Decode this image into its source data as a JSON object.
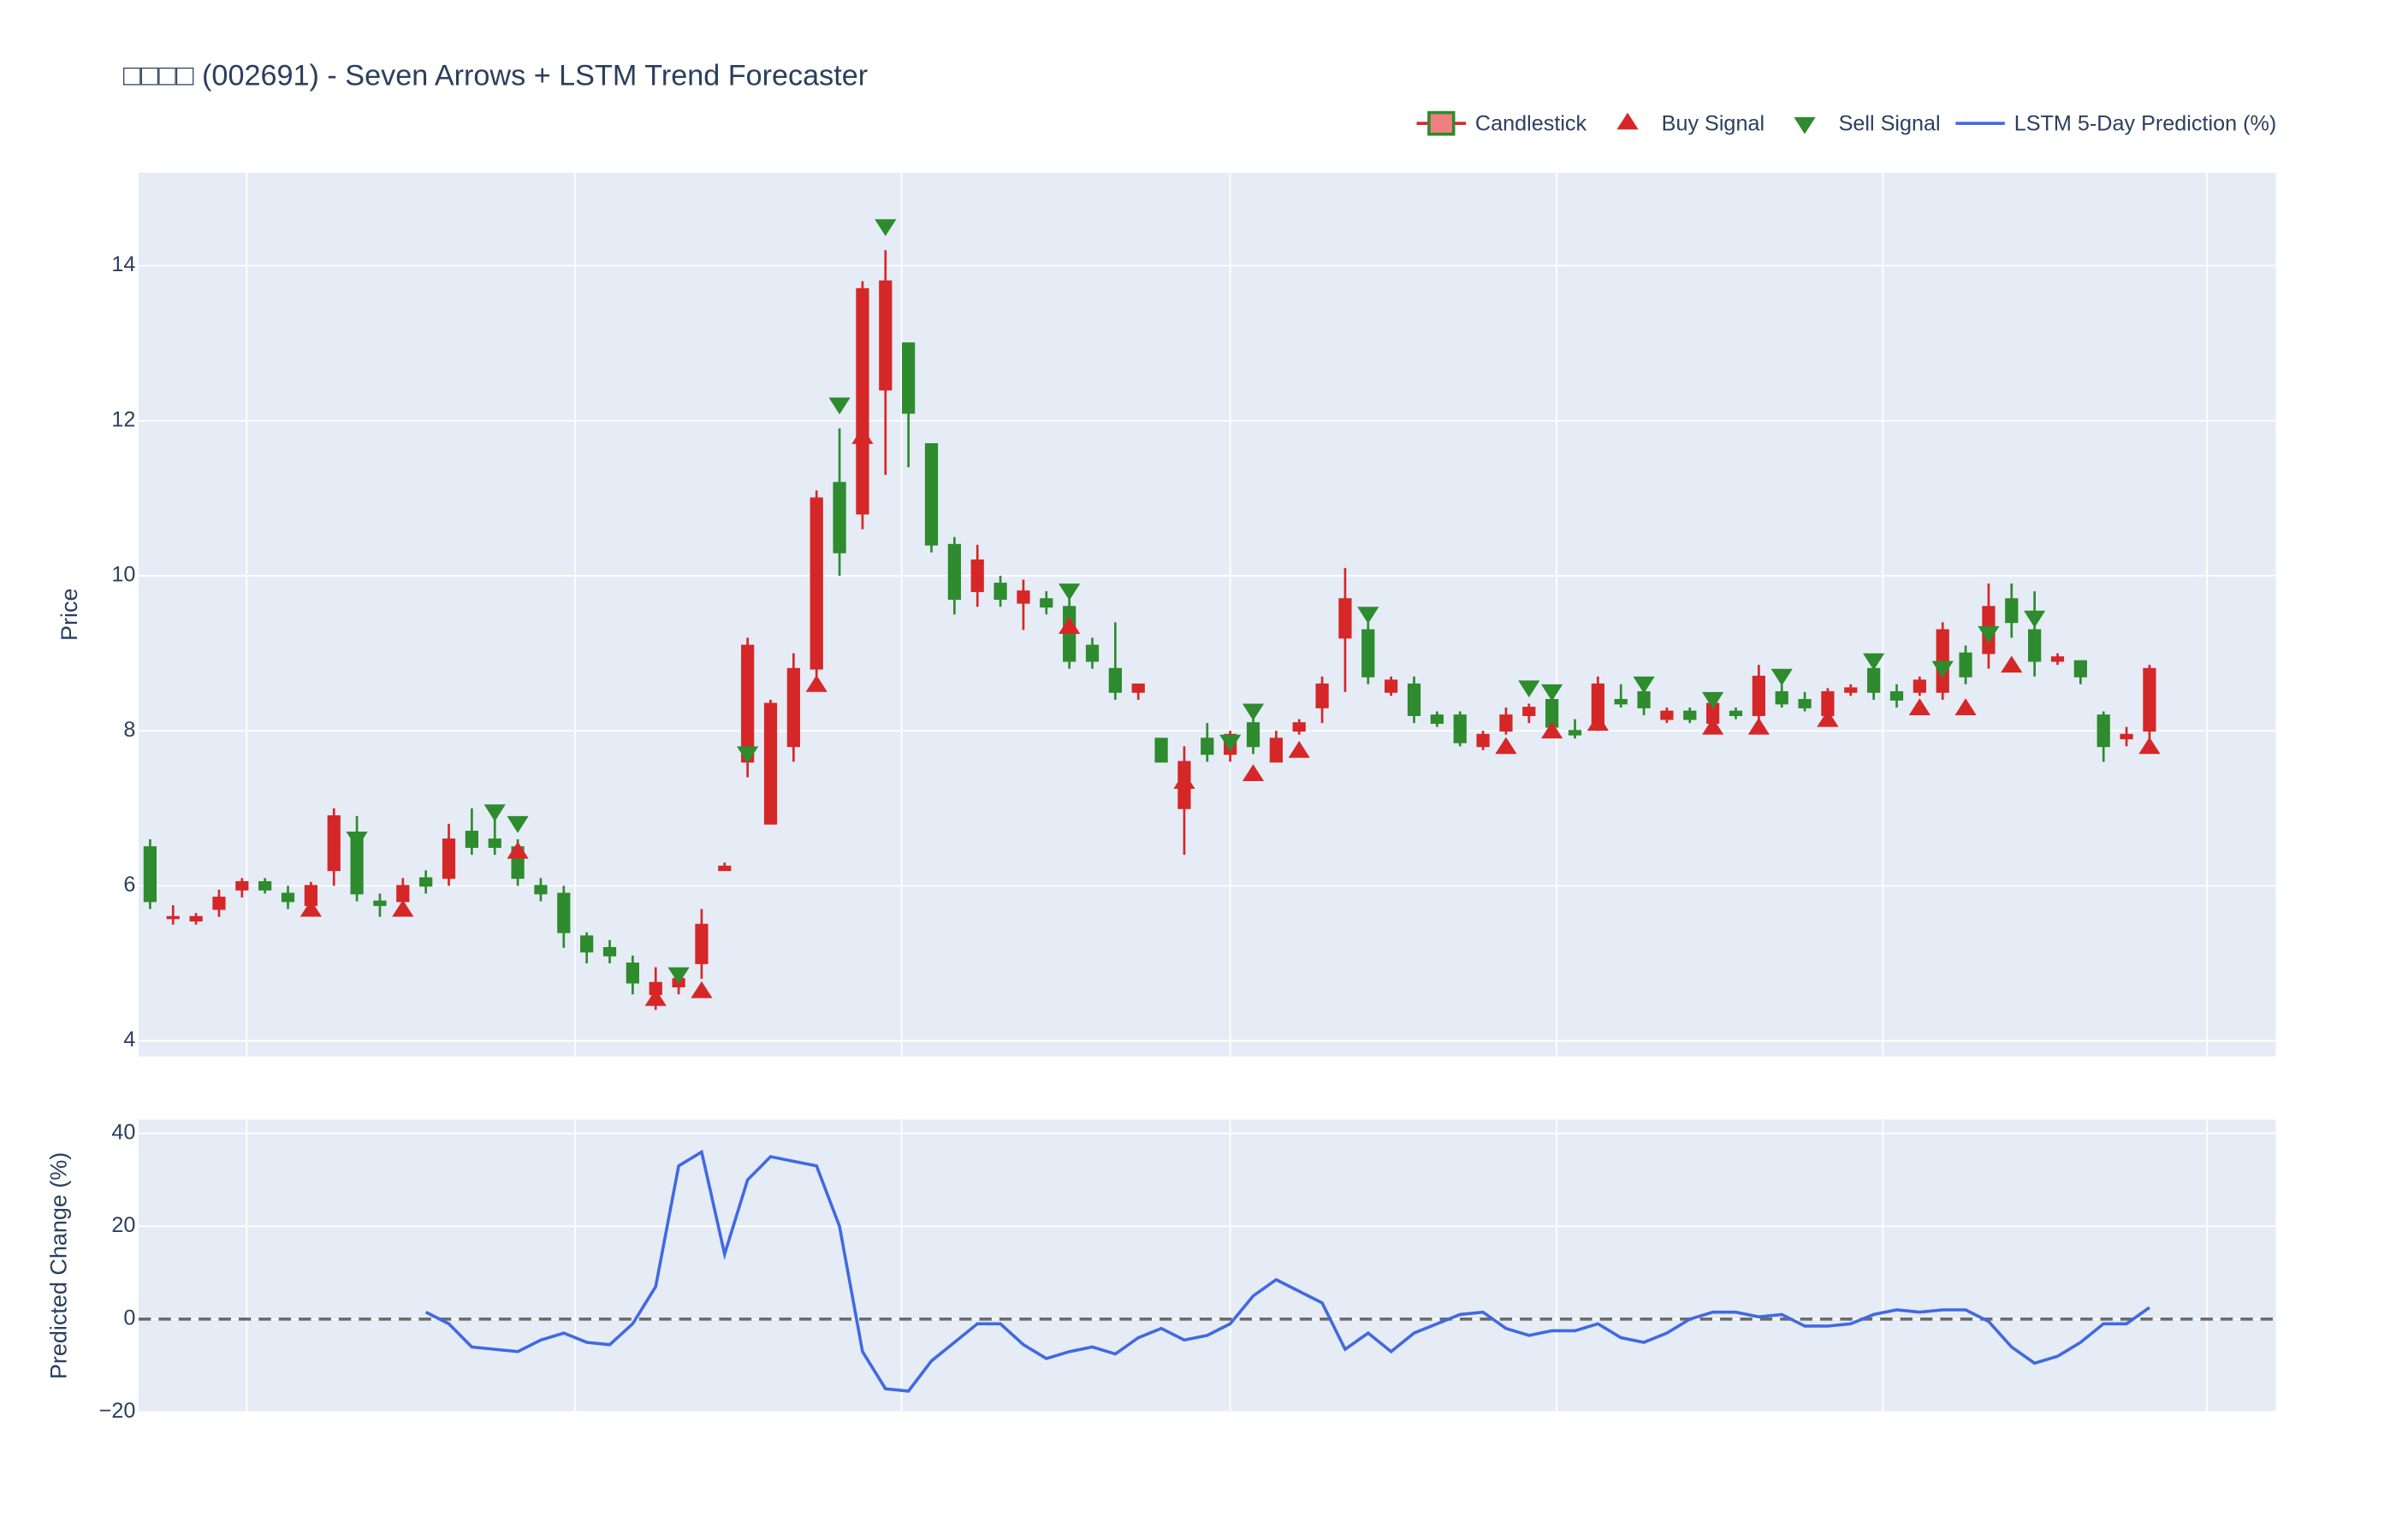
{
  "chart_data": [
    {
      "type": "candlestick",
      "title": "□□□□ (002691) - Seven Arrows + LSTM Trend Forecaster",
      "y_label": "Price",
      "name": "Candlestick",
      "increasing_color": "#d62728",
      "decreasing_color": "#2e8b2e",
      "legend": "top-right",
      "grid": true,
      "x": [
        0,
        1,
        2,
        3,
        4,
        5,
        6,
        7,
        8,
        9,
        10,
        11,
        12,
        13,
        14,
        15,
        16,
        17,
        18,
        19,
        20,
        21,
        22,
        23,
        24,
        25,
        26,
        27,
        28,
        29,
        30,
        31,
        32,
        33,
        34,
        35,
        36,
        37,
        38,
        39,
        40,
        41,
        42,
        43,
        44,
        45,
        46,
        47,
        48,
        49,
        50,
        51,
        52,
        53,
        54,
        55,
        56,
        57,
        58,
        59,
        60,
        61,
        62,
        63,
        64,
        65,
        66,
        67,
        68,
        69,
        70,
        71,
        72,
        73,
        74,
        75,
        76,
        77,
        78,
        79,
        80,
        81,
        82,
        83,
        84,
        85,
        86,
        87
      ],
      "open": [
        6.5,
        5.6,
        5.55,
        5.7,
        5.95,
        6.05,
        5.9,
        5.75,
        6.2,
        6.6,
        5.8,
        5.8,
        6.1,
        6.1,
        6.7,
        6.6,
        6.5,
        6.0,
        5.9,
        5.35,
        5.2,
        5.0,
        4.6,
        4.7,
        5.0,
        6.2,
        7.6,
        6.8,
        7.8,
        8.8,
        11.2,
        10.8,
        12.4,
        13.0,
        11.7,
        10.4,
        9.8,
        9.9,
        9.65,
        9.7,
        9.6,
        9.1,
        8.8,
        8.5,
        7.9,
        7.0,
        7.9,
        7.7,
        8.1,
        7.6,
        8.0,
        8.3,
        9.2,
        9.3,
        8.5,
        8.6,
        8.2,
        8.2,
        7.8,
        8.0,
        8.2,
        8.4,
        8.0,
        8.1,
        8.4,
        8.5,
        8.15,
        8.25,
        8.1,
        8.25,
        8.2,
        8.5,
        8.4,
        8.2,
        8.5,
        8.8,
        8.5,
        8.5,
        8.5,
        9.0,
        9.0,
        9.7,
        9.3,
        8.9,
        8.9,
        8.2,
        7.9,
        8.0
      ],
      "high": [
        6.6,
        5.75,
        5.65,
        5.95,
        6.1,
        6.1,
        6.0,
        6.05,
        7.0,
        6.9,
        5.9,
        6.1,
        6.2,
        6.8,
        7.0,
        6.9,
        6.6,
        6.1,
        6.0,
        5.4,
        5.3,
        5.1,
        4.95,
        4.9,
        5.7,
        6.3,
        9.2,
        8.4,
        9.0,
        11.1,
        11.9,
        13.8,
        14.2,
        13.0,
        11.7,
        10.5,
        10.4,
        10.0,
        9.95,
        9.8,
        9.7,
        9.2,
        9.4,
        8.6,
        7.9,
        7.8,
        8.1,
        8.0,
        8.2,
        8.0,
        8.15,
        8.7,
        10.1,
        9.4,
        8.7,
        8.7,
        8.25,
        8.25,
        8.0,
        8.3,
        8.35,
        8.5,
        8.15,
        8.7,
        8.6,
        8.6,
        8.3,
        8.3,
        8.4,
        8.3,
        8.85,
        8.6,
        8.5,
        8.55,
        8.6,
        8.9,
        8.6,
        8.7,
        9.4,
        9.1,
        9.9,
        9.9,
        9.8,
        9.0,
        8.9,
        8.25,
        8.05,
        8.85
      ],
      "low": [
        5.7,
        5.5,
        5.5,
        5.6,
        5.85,
        5.9,
        5.7,
        5.7,
        6.0,
        5.8,
        5.6,
        5.7,
        5.9,
        6.0,
        6.4,
        6.4,
        6.0,
        5.8,
        5.2,
        5.0,
        5.0,
        4.6,
        4.4,
        4.6,
        4.8,
        6.2,
        7.4,
        6.8,
        7.6,
        8.6,
        10.0,
        10.6,
        11.3,
        11.4,
        10.3,
        9.5,
        9.6,
        9.6,
        9.3,
        9.5,
        8.8,
        8.8,
        8.4,
        8.4,
        7.6,
        6.4,
        7.6,
        7.6,
        7.7,
        7.6,
        7.95,
        8.1,
        8.5,
        8.6,
        8.45,
        8.1,
        8.05,
        7.8,
        7.75,
        7.95,
        8.1,
        7.95,
        7.9,
        8.0,
        8.3,
        8.2,
        8.1,
        8.1,
        8.05,
        8.15,
        8.1,
        8.3,
        8.25,
        8.1,
        8.45,
        8.4,
        8.3,
        8.45,
        8.4,
        8.6,
        8.8,
        9.2,
        8.7,
        8.85,
        8.6,
        7.6,
        7.8,
        7.9
      ],
      "close": [
        5.8,
        5.6,
        5.6,
        5.85,
        6.05,
        5.95,
        5.8,
        6.0,
        6.9,
        5.9,
        5.75,
        6.0,
        6.0,
        6.6,
        6.5,
        6.5,
        6.1,
        5.9,
        5.4,
        5.15,
        5.1,
        4.75,
        4.75,
        4.8,
        5.5,
        6.25,
        9.1,
        8.35,
        8.8,
        11.0,
        10.3,
        13.7,
        13.8,
        12.1,
        10.4,
        9.7,
        10.2,
        9.7,
        9.8,
        9.6,
        8.9,
        8.9,
        8.5,
        8.6,
        7.6,
        7.6,
        7.7,
        7.95,
        7.8,
        7.9,
        8.1,
        8.6,
        9.7,
        8.7,
        8.65,
        8.2,
        8.1,
        7.85,
        7.95,
        8.2,
        8.3,
        8.05,
        7.95,
        8.6,
        8.35,
        8.3,
        8.25,
        8.15,
        8.35,
        8.2,
        8.7,
        8.35,
        8.3,
        8.5,
        8.55,
        8.5,
        8.4,
        8.65,
        9.3,
        8.7,
        9.6,
        9.4,
        8.9,
        8.95,
        8.7,
        7.8,
        7.95,
        8.8
      ],
      "xlim": [
        -0.5,
        92.5
      ],
      "x_grid": [
        4.2,
        18.5,
        32.7,
        47.0,
        61.2,
        75.4,
        89.5
      ],
      "ylim": [
        3.8,
        15.2
      ],
      "yticks": [
        4,
        6,
        8,
        10,
        12,
        14
      ],
      "signals": [
        {
          "name": "Buy Signal",
          "marker": "triangle-up",
          "color": "#d62728",
          "x": [
            7,
            11,
            16,
            22,
            24,
            29,
            31,
            40,
            45,
            48,
            50,
            59,
            61,
            63,
            68,
            70,
            73,
            77,
            79,
            81,
            87
          ],
          "values": [
            5.7,
            5.7,
            6.45,
            4.55,
            4.65,
            8.6,
            11.8,
            9.35,
            7.35,
            7.45,
            7.75,
            7.8,
            8.0,
            8.1,
            8.05,
            8.05,
            8.15,
            8.3,
            8.3,
            8.85,
            7.8
          ]
        },
        {
          "name": "Sell Signal",
          "marker": "triangle-down",
          "color": "#2e8b2e",
          "x": [
            9,
            15,
            16,
            23,
            26,
            30,
            32,
            40,
            47,
            48,
            53,
            60,
            61,
            65,
            68,
            71,
            75,
            78,
            80,
            82
          ],
          "values": [
            6.6,
            6.95,
            6.8,
            4.85,
            7.7,
            12.2,
            14.5,
            9.8,
            7.85,
            8.25,
            9.5,
            8.55,
            8.5,
            8.6,
            8.4,
            8.7,
            8.9,
            8.8,
            9.25,
            9.45
          ]
        }
      ]
    },
    {
      "type": "line",
      "y_label": "Predicted Change (%)",
      "grid": true,
      "x": [
        0,
        1,
        2,
        3,
        4,
        5,
        6,
        7,
        8,
        9,
        10,
        11,
        12,
        13,
        14,
        15,
        16,
        17,
        18,
        19,
        20,
        21,
        22,
        23,
        24,
        25,
        26,
        27,
        28,
        29,
        30,
        31,
        32,
        33,
        34,
        35,
        36,
        37,
        38,
        39,
        40,
        41,
        42,
        43,
        44,
        45,
        46,
        47,
        48,
        49,
        50,
        51,
        52,
        53,
        54,
        55,
        56,
        57,
        58,
        59,
        60,
        61,
        62,
        63,
        64,
        65,
        66,
        67,
        68,
        69,
        70,
        71,
        72,
        73,
        74,
        75,
        76,
        77,
        78,
        79,
        80,
        81,
        82,
        83,
        84,
        85,
        86,
        87
      ],
      "series": [
        {
          "name": "LSTM 5-Day Prediction (%)",
          "color": "#4169e1",
          "values": [
            null,
            null,
            null,
            null,
            null,
            null,
            null,
            null,
            null,
            null,
            null,
            null,
            1.5,
            -1,
            -6,
            -6.5,
            -7,
            -4.5,
            -3,
            -5,
            -5.5,
            -1,
            7,
            33,
            36,
            14,
            30,
            35,
            34,
            33,
            20,
            -7,
            -15,
            -15.5,
            -9,
            -5,
            -1,
            -1,
            -5.5,
            -8.5,
            -7,
            -6,
            -7.5,
            -4,
            -2,
            -4.5,
            -3.5,
            -1,
            5,
            8.5,
            6,
            3.5,
            -6.5,
            -3,
            -7,
            -3,
            -1,
            1,
            1.5,
            -2,
            -3.5,
            -2.5,
            -2.5,
            -1,
            -4,
            -5,
            -3,
            0,
            1.5,
            1.5,
            0.5,
            1,
            -1.5,
            -1.5,
            -1,
            1,
            2,
            1.5,
            2,
            2,
            -0.5,
            -6,
            -9.5,
            -8,
            -5,
            -1,
            -1,
            2.5
          ]
        }
      ],
      "hline": 0,
      "xlim": [
        -0.5,
        92.5
      ],
      "x_grid": [
        4.2,
        18.5,
        32.7,
        47.0,
        61.2,
        75.4,
        89.5
      ],
      "ylim": [
        -20,
        43
      ],
      "yticks": [
        {
          "value": -20,
          "label": "−20"
        },
        0,
        20,
        40
      ]
    }
  ]
}
